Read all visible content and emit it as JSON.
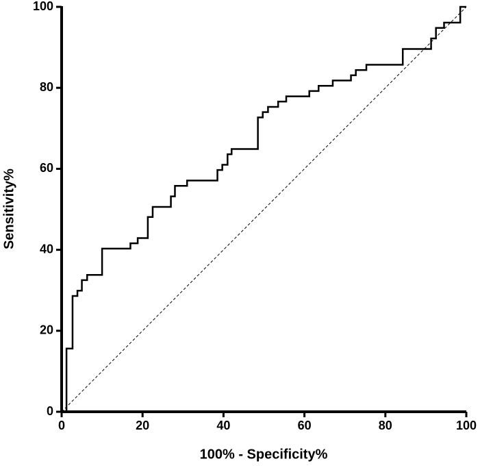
{
  "chart_data": {
    "type": "line",
    "xlabel": "100% - Specificity%",
    "ylabel": "Sensitivity%",
    "xlim": [
      0,
      100
    ],
    "ylim": [
      0,
      100
    ],
    "xticks": [
      0,
      20,
      40,
      60,
      80,
      100
    ],
    "yticks": [
      0,
      20,
      40,
      60,
      80,
      100
    ],
    "series": [
      {
        "color": "#000000",
        "line_style": "solid",
        "x": [
          1.2,
          1.2,
          2.7,
          2.7,
          3.9,
          3.9,
          5,
          5,
          6.3,
          6.3,
          10,
          10,
          17,
          17,
          18.8,
          18.8,
          21.3,
          21.3,
          22.5,
          22.5,
          27,
          27,
          28,
          28,
          31,
          31,
          38.5,
          38.5,
          39.7,
          39.7,
          41,
          41,
          42,
          42,
          48.5,
          48.5,
          49.7,
          49.7,
          51,
          51,
          53.5,
          53.5,
          55.5,
          55.5,
          61.2,
          61.2,
          63.5,
          63.5,
          67,
          67,
          71.5,
          71.5,
          72.7,
          72.7,
          75.3,
          75.3,
          84.3,
          84.3,
          91.3,
          91.3,
          92.5,
          92.5,
          94.5,
          94.5,
          98.5,
          98.5,
          100
        ],
        "values": [
          0,
          15.6,
          15.6,
          28.6,
          28.6,
          29.9,
          29.9,
          32.5,
          32.5,
          33.8,
          33.8,
          40.3,
          40.3,
          41.6,
          41.6,
          42.9,
          42.9,
          48.1,
          48.1,
          50.6,
          50.6,
          53.2,
          53.2,
          55.8,
          55.8,
          57.1,
          57.1,
          59.7,
          59.7,
          61,
          61,
          63.6,
          63.6,
          64.9,
          64.9,
          72.7,
          72.7,
          74,
          74,
          75.3,
          75.3,
          76.6,
          76.6,
          77.9,
          77.9,
          79.2,
          79.2,
          80.5,
          80.5,
          81.8,
          81.8,
          83.1,
          83.1,
          84.4,
          84.4,
          85.7,
          85.7,
          89.6,
          89.6,
          92.2,
          92.2,
          94.8,
          94.8,
          96.1,
          96.1,
          100,
          100
        ]
      },
      {
        "color": "#000000",
        "line_style": "dashed",
        "x": [
          0,
          100
        ],
        "values": [
          0,
          100
        ]
      }
    ]
  }
}
